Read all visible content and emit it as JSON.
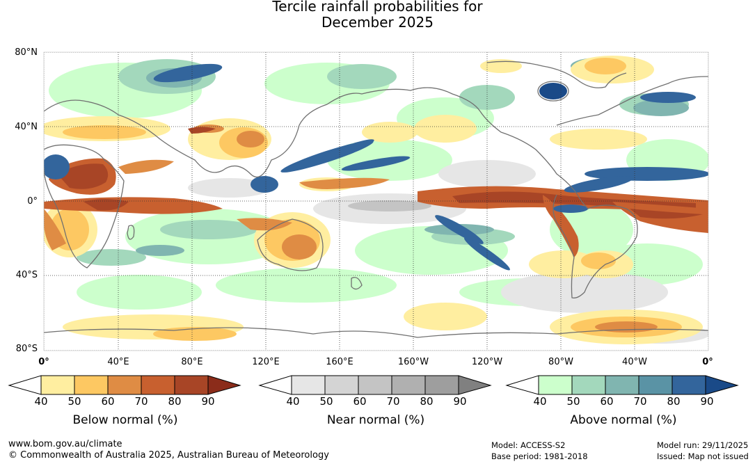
{
  "title": {
    "line1": "Tercile rainfall probabilities for",
    "line2": "December 2025"
  },
  "lat_labels": [
    "80°N",
    "40°N",
    "0°",
    "40°S",
    "80°S"
  ],
  "lon_labels": [
    "0°",
    "40°E",
    "80°E",
    "120°E",
    "160°E",
    "160°W",
    "120°W",
    "80°W",
    "40°W",
    "0°"
  ],
  "colorbars": [
    {
      "title": "Below normal (%)",
      "ticks": [
        "40",
        "50",
        "60",
        "70",
        "80",
        "90"
      ],
      "colors": [
        "#ffffff",
        "#ffeea0",
        "#fdc862",
        "#df8c44",
        "#c8602f",
        "#a84526",
        "#8b2c1a"
      ]
    },
    {
      "title": "Near normal (%)",
      "ticks": [
        "40",
        "50",
        "60",
        "70",
        "80",
        "90"
      ],
      "colors": [
        "#ffffff",
        "#e6e6e6",
        "#d4d4d4",
        "#c4c4c4",
        "#b0b0b0",
        "#9e9e9e",
        "#808080"
      ]
    },
    {
      "title": "Above normal (%)",
      "ticks": [
        "40",
        "50",
        "60",
        "70",
        "80",
        "90"
      ],
      "colors": [
        "#ffffff",
        "#ccffcc",
        "#a3d8bc",
        "#80b5b0",
        "#5a93a5",
        "#33659c",
        "#1a4a88"
      ]
    }
  ],
  "footer": {
    "website": "www.bom.gov.au/climate",
    "copyright": "© Commonwealth of Australia 2025, Australian Bureau of Meteorology",
    "model": "Model: ACCESS-S2",
    "base_period": "Base period: 1981-2018",
    "model_run": "Model run: 29/11/2025",
    "issued": "Issued: Map not issued"
  }
}
